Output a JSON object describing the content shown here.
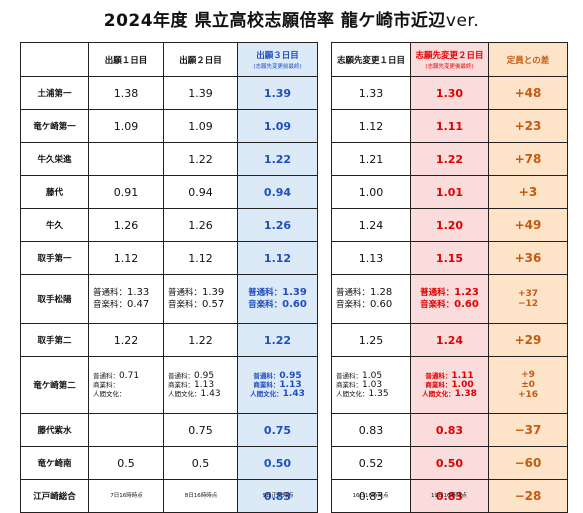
{
  "title": {
    "main": "2024年度 県立高校志願倍率 龍ケ崎市近辺",
    "suffix": "ver."
  },
  "headers": {
    "day1": "出願１日目",
    "day2": "出願２日目",
    "day3": "出願３日目",
    "day3_sub": "(志願先変更前最終)",
    "change1": "志願先変更１日目",
    "change2": "志願先変更２日目",
    "change2_sub": "(志願先変更後最終)",
    "diff": "定員との差"
  },
  "rows": [
    {
      "name": "土浦第一",
      "d1": "1.38",
      "d2": "1.39",
      "d3": "1.39",
      "c1": "1.33",
      "c2": "1.30",
      "diff": "+48"
    },
    {
      "name": "竜ケ崎第一",
      "d1": "1.09",
      "d2": "1.09",
      "d3": "1.09",
      "c1": "1.12",
      "c2": "1.11",
      "diff": "+23"
    },
    {
      "name": "牛久栄進",
      "d1": "",
      "d2": "1.22",
      "d3": "1.22",
      "c1": "1.21",
      "c2": "1.22",
      "diff": "+78"
    },
    {
      "name": "藤代",
      "d1": "0.91",
      "d2": "0.94",
      "d3": "0.94",
      "c1": "1.00",
      "c2": "1.01",
      "diff": "+3"
    },
    {
      "name": "牛久",
      "d1": "1.26",
      "d2": "1.26",
      "d3": "1.26",
      "c1": "1.24",
      "c2": "1.20",
      "diff": "+49"
    },
    {
      "name": "取手第一",
      "d1": "1.12",
      "d2": "1.12",
      "d3": "1.12",
      "c1": "1.13",
      "c2": "1.15",
      "diff": "+36"
    }
  ],
  "matsuyo": {
    "name": "取手松陽",
    "d1": [
      {
        "label": "普通科：",
        "value": "1.33"
      },
      {
        "label": "音楽科：",
        "value": "0.47"
      }
    ],
    "d2": [
      {
        "label": "普通科：",
        "value": "1.39"
      },
      {
        "label": "音楽科：",
        "value": "0.57"
      }
    ],
    "d3": [
      {
        "label": "普通科：",
        "value": "1.39"
      },
      {
        "label": "音楽科：",
        "value": "0.60"
      }
    ],
    "c1": [
      {
        "label": "普通科：",
        "value": "1.28"
      },
      {
        "label": "音楽科：",
        "value": "0.60"
      }
    ],
    "c2": [
      {
        "label": "普通科：",
        "value": "1.23"
      },
      {
        "label": "音楽科：",
        "value": "0.60"
      }
    ],
    "diff": [
      "+37",
      "−12"
    ]
  },
  "toride2": {
    "name": "取手第二",
    "d1": "1.22",
    "d2": "1.22",
    "d3": "1.22",
    "c1": "1.25",
    "c2": "1.24",
    "diff": "+29"
  },
  "ryudai2": {
    "name": "竜ケ崎第二",
    "d1": [
      {
        "label": "普通科：",
        "value": "0.71"
      },
      {
        "label": "商業科：",
        "value": ""
      },
      {
        "label": "人間文化：",
        "value": ""
      }
    ],
    "d2": [
      {
        "label": "普通科：",
        "value": "0.95"
      },
      {
        "label": "商業科：",
        "value": "1.13"
      },
      {
        "label": "人間文化：",
        "value": "1.43"
      }
    ],
    "d3": [
      {
        "label": "普通科：",
        "value": "0.95"
      },
      {
        "label": "商業科：",
        "value": "1.13"
      },
      {
        "label": "人間文化：",
        "value": "1.43"
      }
    ],
    "c1": [
      {
        "label": "普通科：",
        "value": "1.05"
      },
      {
        "label": "商業科：",
        "value": "1.03"
      },
      {
        "label": "人間文化：",
        "value": "1.35"
      }
    ],
    "c2": [
      {
        "label": "普通科：",
        "value": "1.11"
      },
      {
        "label": "商業科：",
        "value": "1.00"
      },
      {
        "label": "人間文化：",
        "value": "1.38"
      }
    ],
    "diff": [
      "+9",
      "±0",
      "+16"
    ]
  },
  "rows2": [
    {
      "name": "藤代紫水",
      "d1": "",
      "d2": "0.75",
      "d3": "0.75",
      "c1": "0.83",
      "c2": "0.83",
      "diff": "−37"
    },
    {
      "name": "竜ケ崎南",
      "d1": "0.5",
      "d2": "0.5",
      "d3": "0.50",
      "c1": "0.52",
      "c2": "0.50",
      "diff": "−60"
    },
    {
      "name": "江戸崎総合",
      "d1": "",
      "d2": "",
      "d3": "0.83",
      "c1": "0.83",
      "c2": "0.83",
      "diff": "−28"
    }
  ],
  "footnotes": {
    "d1": "7日16時時点",
    "d2": "8日16時時点",
    "d3": "9日正午時点",
    "c1": "16日16時時点",
    "c2": "19日16時時点"
  }
}
